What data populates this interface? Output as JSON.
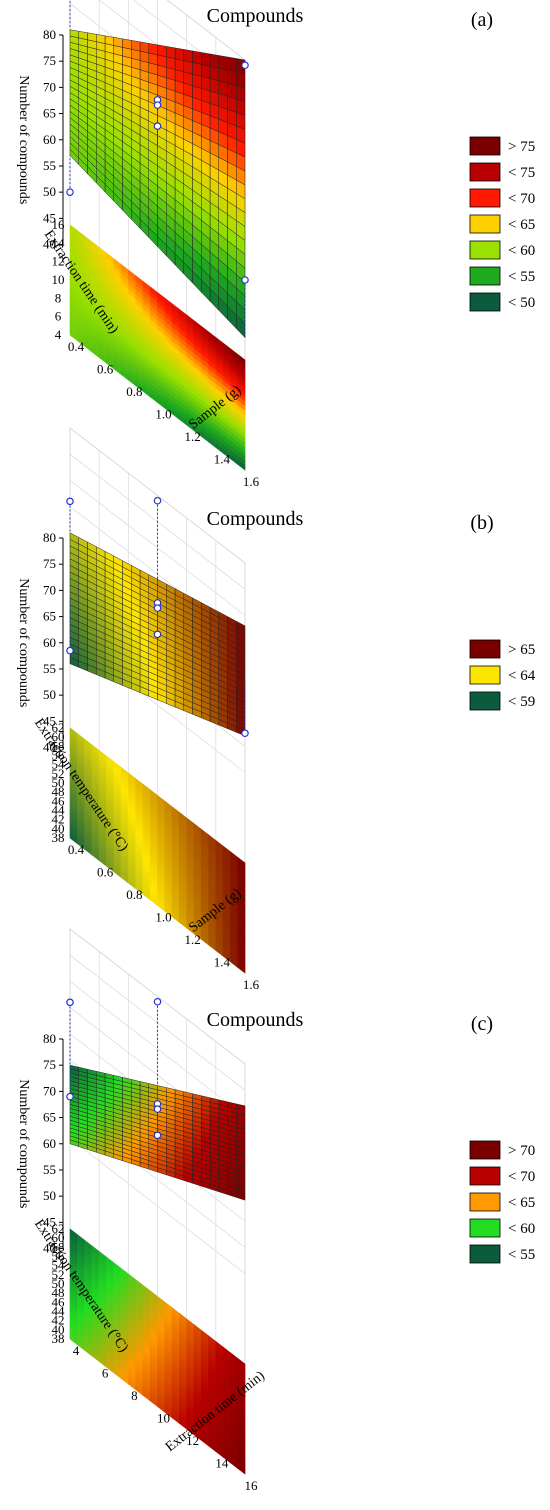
{
  "chart_data": [
    {
      "type": "surface3d",
      "panel_label": "(a)",
      "title": "Compounds",
      "zlabel": "Number of compounds",
      "xlabel": "Sample (g)",
      "ylabel": "Extraction time (min)",
      "zlim": [
        38,
        80
      ],
      "z_ticks": [
        "80",
        "75",
        "70",
        "65",
        "60",
        "55",
        "50",
        "45",
        "40"
      ],
      "x_ticks": [
        "0.4",
        "0.6",
        "0.8",
        "1.0",
        "1.2",
        "1.4",
        "1.6"
      ],
      "y_ticks": [
        "4",
        "6",
        "8",
        "10",
        "12",
        "14",
        "16"
      ],
      "corners": {
        "x0y0": 57,
        "x1y0": 48,
        "x0y1": 60,
        "x1y1": 80,
        "note": "x0=0.4 g, x1=1.6 g, y0=4 min, y1=16 min"
      },
      "legend": [
        {
          "label": "> 75",
          "color": "#7a0000"
        },
        {
          "label": "< 75",
          "color": "#b80000"
        },
        {
          "label": "< 70",
          "color": "#ff1a00"
        },
        {
          "label": "< 65",
          "color": "#ffd000"
        },
        {
          "label": "< 60",
          "color": "#9ae000"
        },
        {
          "label": "< 55",
          "color": "#1faa1f"
        },
        {
          "label": "< 50",
          "color": "#0a5c3c"
        }
      ],
      "points": [
        {
          "x": 0.4,
          "y": 16,
          "z": 67
        },
        {
          "x": 1.0,
          "y": 10,
          "z": 70
        },
        {
          "x": 1.0,
          "y": 10,
          "z": 69
        },
        {
          "x": 1.0,
          "y": 10,
          "z": 65
        },
        {
          "x": 1.6,
          "y": 16,
          "z": 79
        },
        {
          "x": 1.6,
          "y": 4,
          "z": 59
        },
        {
          "x": 0.4,
          "y": 4,
          "z": 50
        }
      ]
    },
    {
      "type": "surface3d",
      "panel_label": "(b)",
      "title": "Compounds",
      "zlabel": "Number of compounds",
      "xlabel": "Sample (g)",
      "ylabel": "Extraction temperature (°C)",
      "zlim": [
        38,
        80
      ],
      "z_ticks": [
        "80",
        "75",
        "70",
        "65",
        "60",
        "55",
        "50",
        "45",
        "40"
      ],
      "x_ticks": [
        "0.4",
        "0.6",
        "0.8",
        "1.0",
        "1.2",
        "1.4",
        "1.6"
      ],
      "y_ticks": [
        "38",
        "40",
        "42",
        "44",
        "46",
        "48",
        "50",
        "52",
        "54",
        "56",
        "58",
        "60",
        "62"
      ],
      "corners": {
        "x0y0": 56,
        "x1y0": 68,
        "x0y1": 60,
        "x1y1": 68,
        "note": "x0=0.4 g, x1=1.6 g, y0=38 °C, y1=62 °C"
      },
      "legend": [
        {
          "label": "> 65",
          "color": "#7a0000"
        },
        {
          "label": "< 64",
          "color": "#ffe600"
        },
        {
          "label": "< 59",
          "color": "#0a5c3c"
        }
      ],
      "points": [
        {
          "x": 0.4,
          "y": 62,
          "z": 66
        },
        {
          "x": 1.0,
          "y": 50,
          "z": 70
        },
        {
          "x": 1.0,
          "y": 50,
          "z": 69
        },
        {
          "x": 1.0,
          "y": 50,
          "z": 64
        },
        {
          "x": 1.0,
          "y": 62,
          "z": 79
        },
        {
          "x": 1.6,
          "y": 50,
          "z": 58
        },
        {
          "x": 0.4,
          "y": 50,
          "z": 48
        }
      ]
    },
    {
      "type": "surface3d",
      "panel_label": "(c)",
      "title": "Compounds",
      "zlabel": "Number of compounds",
      "xlabel": "Extraction time (min)",
      "ylabel": "Extraction temperature (°C)",
      "zlim": [
        38,
        80
      ],
      "z_ticks": [
        "80",
        "75",
        "70",
        "65",
        "60",
        "55",
        "50",
        "45",
        "40"
      ],
      "x_ticks": [
        "4",
        "6",
        "8",
        "10",
        "12",
        "14",
        "16"
      ],
      "y_ticks": [
        "38",
        "40",
        "42",
        "44",
        "46",
        "48",
        "50",
        "52",
        "54",
        "56",
        "58",
        "60",
        "62"
      ],
      "corners": {
        "x0y0": 60,
        "x1y0": 75,
        "x0y1": 54,
        "x1y1": 72,
        "note": "x0=4 min, x1=16 min, y0=38 °C, y1=62 °C"
      },
      "legend": [
        {
          "label": "> 70",
          "color": "#7a0000"
        },
        {
          "label": "< 70",
          "color": "#b80000"
        },
        {
          "label": "< 65",
          "color": "#ff9900"
        },
        {
          "label": "< 60",
          "color": "#22dd22"
        },
        {
          "label": "< 55",
          "color": "#0a5c3c"
        }
      ],
      "points": [
        {
          "x": 4,
          "y": 62,
          "z": 66
        },
        {
          "x": 10,
          "y": 50,
          "z": 70
        },
        {
          "x": 10,
          "y": 50,
          "z": 69
        },
        {
          "x": 10,
          "y": 50,
          "z": 64
        },
        {
          "x": 10,
          "y": 62,
          "z": 79
        },
        {
          "x": 4,
          "y": 62,
          "z": 48
        }
      ]
    }
  ]
}
